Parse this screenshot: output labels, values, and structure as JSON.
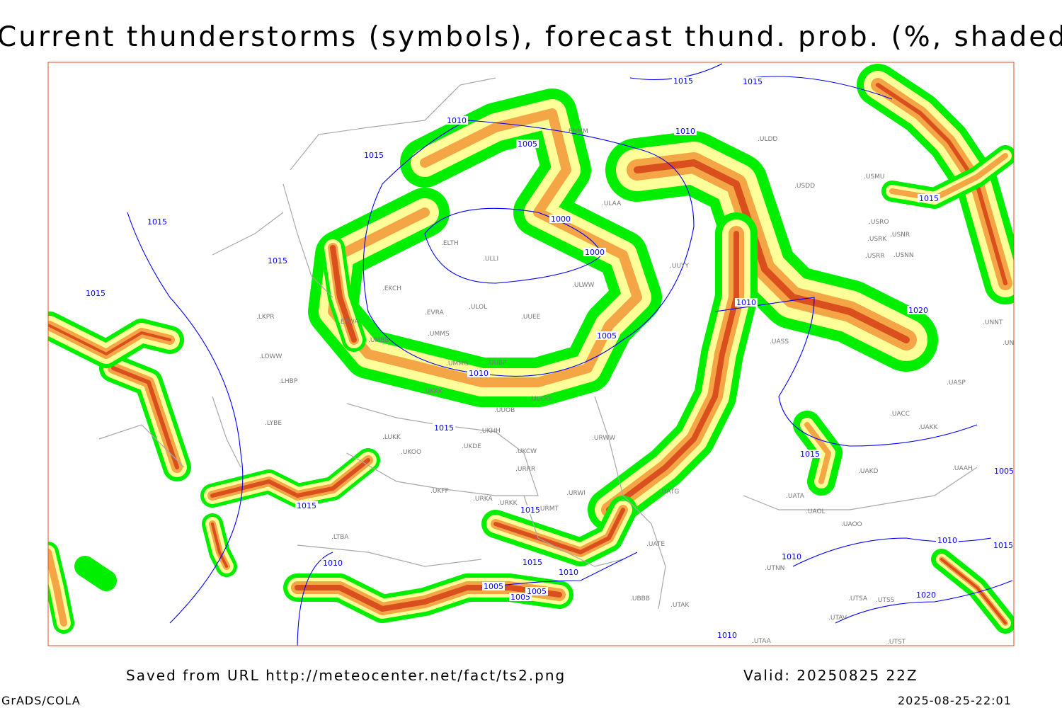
{
  "title": "Current thunderstorms (symbols), forecast thund. prob. (%, shaded)",
  "footer": {
    "saved_from": "Saved from URL http://meteocenter.net/fact/ts2.png",
    "valid": "Valid: 20250825 22Z",
    "software": "GrADS/COLA",
    "timestamp": "2025-08-25-22:01"
  },
  "map": {
    "colors": {
      "prob_low": "#00ee00",
      "prob_mid": "#ffff99",
      "prob_high": "#f4a646",
      "prob_max": "#d94f1e",
      "isobar": "#0000ff",
      "coastline": "#a0a0a0",
      "frame": "#e05020"
    },
    "isobar_labels": [
      "1015",
      "1015",
      "1010",
      "1005",
      "1010",
      "1015",
      "1015",
      "1015",
      "1000",
      "1000",
      "1015",
      "1010",
      "1005",
      "1010",
      "1015",
      "1020",
      "1015",
      "1015",
      "1015",
      "1010",
      "1015",
      "1010",
      "1005",
      "1005",
      "1010",
      "1015",
      "1005",
      "1010",
      "1005",
      "1015",
      "1020",
      "1010"
    ],
    "station_labels": [
      "ENMM",
      "ULAA",
      "ULDD",
      "USDD",
      "USMU",
      "USRO",
      "USRK",
      "USNR",
      "USRR",
      "USNN",
      "UNNT",
      "UNBB",
      "ULLI",
      "ULWW",
      "UUYY",
      "ULOL",
      "UUEE",
      "UMMS",
      "UMBB",
      "UMMG",
      "UUBP",
      "UKKK",
      "UUOO",
      "UUOB",
      "UKHH",
      "UKDE",
      "UKCW",
      "URRR",
      "UKFF",
      "URKA",
      "URKK",
      "URWI",
      "URWW",
      "URMT",
      "UATG",
      "UATA",
      "UAOL",
      "UAOO",
      "UATE",
      "UAKD",
      "UAAH",
      "UTAK",
      "UTNN",
      "UTAA",
      "UTSS",
      "UTSA",
      "UTAV",
      "UTST",
      "UBBB",
      "LTBA",
      "LKPR",
      "LOWW",
      "LHBP",
      "LYBE",
      "LUKK",
      "UKOO",
      "EPWA",
      "ELTH",
      "EVRA",
      "EKCH",
      "UACC",
      "UAKK",
      "UASP",
      "UASS"
    ]
  }
}
